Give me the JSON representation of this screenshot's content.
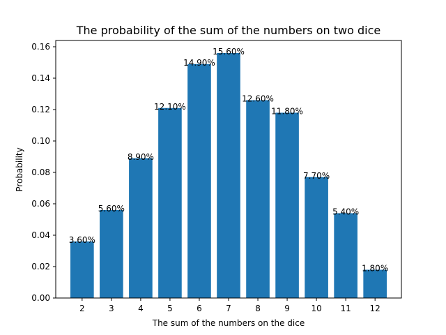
{
  "chart_data": {
    "type": "bar",
    "title": "The probability of the sum of the numbers on two dice",
    "xlabel": "The sum of the numbers on the dice",
    "ylabel": "Probability",
    "categories": [
      "2",
      "3",
      "4",
      "5",
      "6",
      "7",
      "8",
      "9",
      "10",
      "11",
      "12"
    ],
    "values": [
      0.036,
      0.056,
      0.089,
      0.121,
      0.149,
      0.156,
      0.126,
      0.118,
      0.077,
      0.054,
      0.018
    ],
    "data_labels": [
      "3.60%",
      "5.60%",
      "8.90%",
      "12.10%",
      "14.90%",
      "15.60%",
      "12.60%",
      "11.80%",
      "7.70%",
      "5.40%",
      "1.80%"
    ],
    "ylim": [
      0,
      0.164
    ],
    "yticks": [
      0.0,
      0.02,
      0.04,
      0.06,
      0.08,
      0.1,
      0.12,
      0.14,
      0.16
    ],
    "ytick_labels": [
      "0.00",
      "0.02",
      "0.04",
      "0.06",
      "0.08",
      "0.10",
      "0.12",
      "0.14",
      "0.16"
    ],
    "grid": false,
    "bar_color": "#1f77b4"
  }
}
